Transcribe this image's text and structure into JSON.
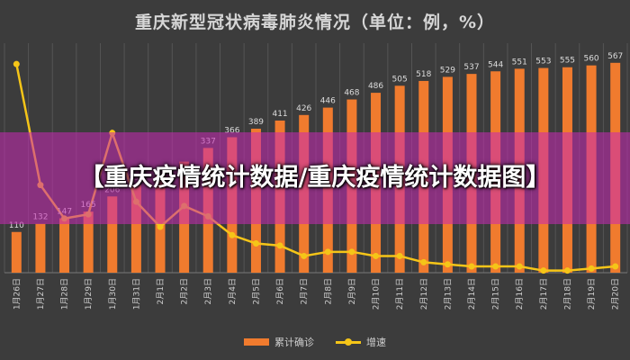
{
  "title": "重庆新型冠状病毒肺炎情况（单位：例，%）",
  "banner": "【重庆疫情统计数据/重庆疫情统计数据图】",
  "chart_data": {
    "type": "bar",
    "title": "重庆新型冠状病毒肺炎情况（单位：例，%）",
    "categories": [
      "1月26日",
      "1月27日",
      "1月28日",
      "1月29日",
      "1月30日",
      "1月31日",
      "2月1日",
      "2月2日",
      "2月3日",
      "2月4日",
      "2月5日",
      "2月6日",
      "2月7日",
      "2月8日",
      "2月9日",
      "2月10日",
      "2月11日",
      "2月12日",
      "2月13日",
      "2月14日",
      "2月15日",
      "2月16日",
      "2月17日",
      "2月18日",
      "2月19日",
      "2月20日"
    ],
    "series": [
      {
        "name": "累计确诊",
        "type": "bar",
        "values": [
          110,
          132,
          147,
          165,
          206,
          238,
          262,
          300,
          337,
          366,
          389,
          411,
          426,
          446,
          468,
          486,
          505,
          518,
          529,
          537,
          544,
          551,
          553,
          555,
          560,
          567
        ],
        "labels": [
          "110",
          "132",
          "147",
          "165",
          "206",
          "238",
          "",
          "",
          "337",
          "366",
          "389",
          "411",
          "426",
          "446",
          "468",
          "486",
          "505",
          "518",
          "529",
          "537",
          "544",
          "551",
          "553",
          "555",
          "560",
          "567"
        ]
      },
      {
        "name": "增速",
        "type": "line",
        "values": [
          100,
          42,
          26,
          28,
          67,
          34,
          22,
          32,
          27,
          18,
          14,
          13,
          8,
          10,
          10,
          8,
          8,
          5,
          4,
          3,
          3,
          3,
          1,
          1,
          2,
          3
        ]
      }
    ],
    "ylim_bar": [
      0,
      620
    ],
    "ylim_line": [
      0,
      110
    ],
    "grid": true,
    "legend": "bottom-center",
    "colors": {
      "bar": "#f07b2e",
      "line": "#f5c518",
      "background": "#3c3c3c",
      "grid": "#555555",
      "label": "#dcdcdc"
    }
  }
}
